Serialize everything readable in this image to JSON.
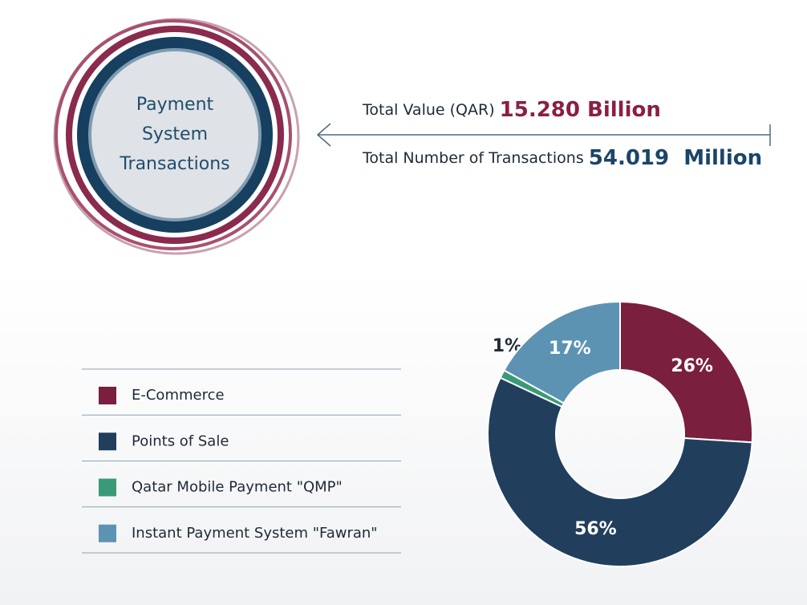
{
  "badge": {
    "lines": [
      "Payment",
      "System",
      "Transactions"
    ]
  },
  "summary": [
    {
      "label": "Total Value (QAR)",
      "value": "15.280 Billion"
    },
    {
      "label": "Total Number of Transactions",
      "value": "54.019  Million"
    }
  ],
  "chart_data": {
    "type": "donut",
    "categories": [
      "E-Commerce",
      "Points of Sale",
      "Qatar Mobile Payment \"QMP\"",
      "Instant Payment System \"Fawran\""
    ],
    "values": [
      26,
      56,
      1,
      17
    ],
    "value_labels": [
      "26%",
      "56%",
      "1%",
      "17%"
    ],
    "colors": [
      "#7a1f3d",
      "#213f5c",
      "#3a9a78",
      "#5d93b2"
    ]
  }
}
